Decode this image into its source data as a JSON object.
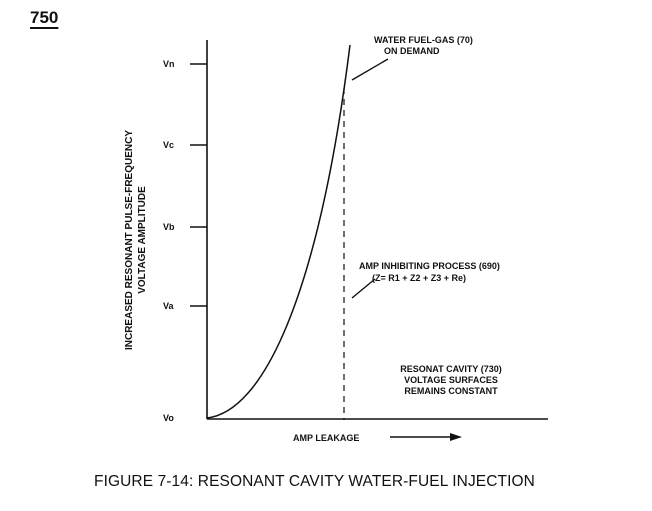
{
  "page_number": "750",
  "caption": "FIGURE 7-14: RESONANT CAVITY WATER-FUEL INJECTION",
  "y_axis": {
    "label_line1": "INCREASED RESONANT PULSE-FREQUENCY",
    "label_line2": "VOLTAGE AMPLITUDE",
    "ticks": [
      "Vo",
      "Va",
      "Vb",
      "Vc",
      "Vn"
    ]
  },
  "x_axis": {
    "label": "AMP LEAKAGE",
    "arrow": "right-arrow"
  },
  "annotations": {
    "water_fuel_gas": [
      "WATER FUEL-GAS (70)",
      "ON DEMAND"
    ],
    "amp_inhibiting": [
      "AMP INHIBITING PROCESS (690)",
      "(Z= R1 + Z2 + Z3 + Re)"
    ],
    "resonant_cavity": [
      "RESONAT CAVITY (730)",
      "VOLTAGE SURFACES",
      "REMAINS CONSTANT"
    ]
  },
  "curve": {
    "shape": "rising curve from Vo to above Vn",
    "limit_line": "dashed vertical line"
  }
}
